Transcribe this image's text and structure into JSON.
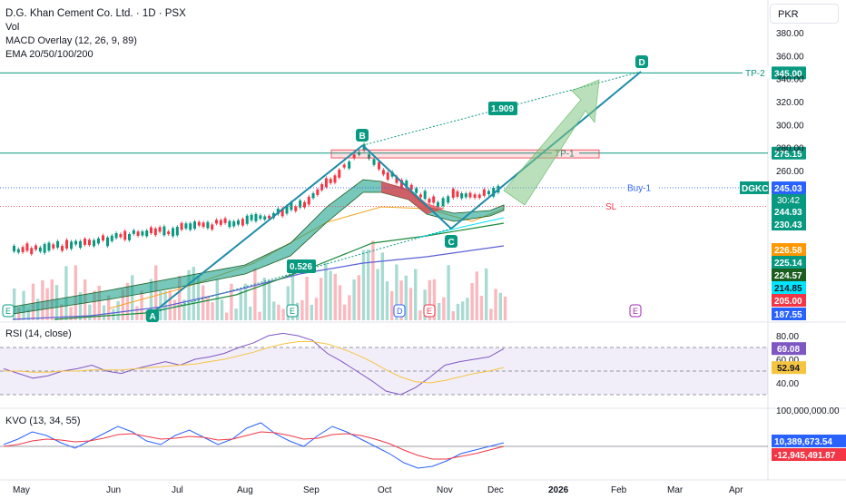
{
  "header": {
    "title": "D.G. Khan Cement Co. Ltd. · 1D · PSX",
    "indicators": [
      "Vol",
      "MACD Overlay (12, 26, 9, 89)",
      "EMA 20/50/100/200"
    ],
    "currency": "PKR"
  },
  "chart_data": {
    "type": "line",
    "x": [
      "May",
      "Jun",
      "Jul",
      "Aug",
      "Sep",
      "Oct",
      "Nov",
      "Dec",
      "2026",
      "Feb",
      "Mar",
      "Apr"
    ],
    "price_axis_ticks": [
      "380.00",
      "360.00",
      "340.00",
      "320.00",
      "300.00",
      "280.00",
      "260.00"
    ],
    "ylim": [
      186,
      390
    ],
    "series": [
      {
        "name": "",
        "color": "#089981",
        "x": [
          "May 1",
          "May 15",
          "Jun 1",
          "Jun 15",
          "Jul 1",
          "Jul 15",
          "Aug 1",
          "Aug 15",
          "Sep 1",
          "Sep 15",
          "Sep 25",
          "Oct 1",
          "Oct 10",
          "Oct 20",
          "Nov 1",
          "Nov 10",
          "Nov 20",
          "Dec 1",
          "Dec 8"
        ],
        "values": [
          190,
          194,
          200,
          205,
          208,
          212,
          216,
          219,
          232,
          258,
          278,
          262,
          252,
          242,
          232,
          238,
          237,
          240,
          245
        ]
      }
    ],
    "price_levels": [
      {
        "label": "TP-2",
        "value": 345.0,
        "color": "#089981",
        "text": "345.00"
      },
      {
        "label": "TP-1",
        "value": 275.15,
        "color": "#089981",
        "text": "275.15"
      },
      {
        "label": "Buy-1",
        "value": 245.03,
        "color": "#2962ff",
        "text": "245.03"
      },
      {
        "label": "SL",
        "value": 228.82,
        "color": "#f23645",
        "text": "228.82"
      }
    ],
    "pattern_points": [
      {
        "label": "A",
        "date": "Jun 20",
        "value": 187
      },
      {
        "label": "B",
        "date": "Sep 25",
        "value": 282
      },
      {
        "label": "C",
        "date": "Nov 15",
        "value": 229
      },
      {
        "label": "D",
        "date": "Feb 10",
        "value": 352
      }
    ],
    "ratios": [
      "1.909",
      "0.526"
    ],
    "current_badge": {
      "symbol": "DGKC",
      "price": "245.03",
      "countdown": "30:42"
    },
    "axis_badges": [
      {
        "text": "244.93",
        "value": 244.93,
        "color": "#089981"
      },
      {
        "text": "230.43",
        "value": 230.43,
        "color": "#089981"
      },
      {
        "text": "226.58",
        "value": 226.58,
        "color": "#ff9800"
      },
      {
        "text": "225.14",
        "value": 225.14,
        "color": "#089981"
      },
      {
        "text": "224.57",
        "value": 224.57,
        "color": "#1b5e20"
      },
      {
        "text": "214.85",
        "value": 214.85,
        "color": "#00e5ff"
      },
      {
        "text": "205.00",
        "value": 205.0,
        "color": "#f23645"
      },
      {
        "text": "187.55",
        "value": 187.55,
        "color": "#2962ff"
      }
    ],
    "rsi": {
      "label": "RSI (14, close)",
      "ticks": [
        "80.00",
        "60.00",
        "40.00"
      ],
      "value": "69.08",
      "ma_value": "52.94",
      "values": [
        52,
        48,
        44,
        46,
        50,
        52,
        55,
        50,
        48,
        52,
        55,
        58,
        55,
        60,
        62,
        65,
        70,
        74,
        80,
        82,
        80,
        76,
        65,
        58,
        50,
        42,
        33,
        30,
        36,
        45,
        55,
        58,
        60,
        62,
        69
      ],
      "ma": [
        50,
        50,
        49,
        49,
        50,
        50,
        51,
        51,
        51,
        52,
        53,
        54,
        55,
        56,
        58,
        60,
        63,
        66,
        70,
        73,
        75,
        75,
        73,
        69,
        64,
        58,
        51,
        45,
        41,
        40,
        42,
        45,
        48,
        50,
        53
      ]
    },
    "kvo": {
      "label": "KVO (13, 34, 55)",
      "top_tick": "100,000,000.00",
      "value": "10,389,673.54",
      "signal_value": "-12,945,491.87"
    },
    "colors": {
      "up": "#089981",
      "down": "#f23645",
      "pattern": "#1f8ca8",
      "accent": "#2962ff"
    }
  }
}
